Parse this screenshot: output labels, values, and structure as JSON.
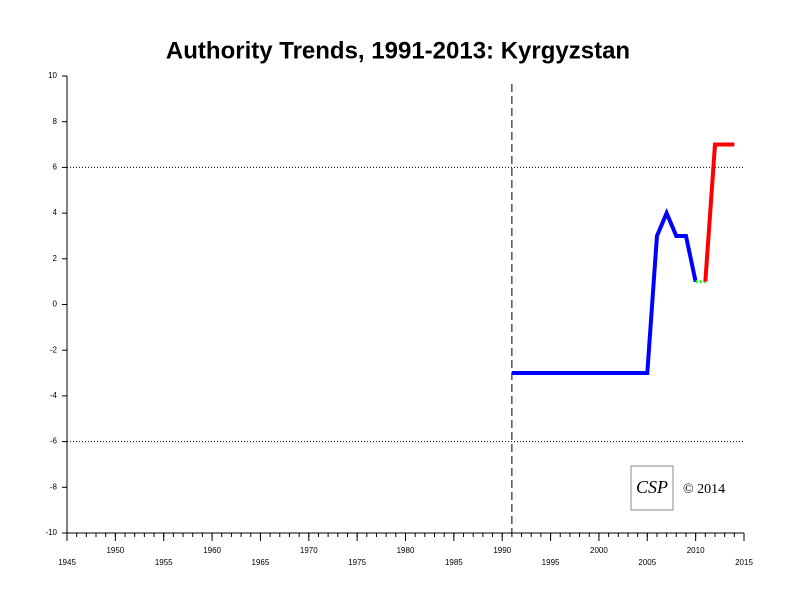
{
  "chart_data": {
    "type": "line",
    "title": "Authority Trends, 1991-2013: Kyrgyzstan",
    "series": [
      {
        "color": "#0000ff",
        "x": [
          1991,
          2005,
          2006,
          2007,
          2008,
          2009,
          2010
        ],
        "values": [
          -3,
          -3,
          3,
          4,
          3,
          3,
          1
        ]
      },
      {
        "color": "#00ff00",
        "x": [
          2010,
          2011
        ],
        "values": [
          1,
          1
        ],
        "dashed": true
      },
      {
        "color": "#ff0000",
        "x": [
          2011,
          2012,
          2013,
          2014
        ],
        "values": [
          1,
          7,
          7,
          7
        ]
      }
    ],
    "xlim": [
      1945,
      2015
    ],
    "xticks": [
      1945,
      1950,
      1955,
      1960,
      1965,
      1970,
      1975,
      1980,
      1985,
      1990,
      1995,
      2000,
      2005,
      2010,
      2015
    ],
    "ylim": [
      -10,
      10
    ],
    "yticks": [
      -10,
      -8,
      -6,
      -4,
      -2,
      0,
      2,
      4,
      6,
      8,
      10
    ],
    "hlines": [
      6,
      -6
    ],
    "vline": 1991,
    "logo": "CSP",
    "copyright": "© 2014"
  }
}
